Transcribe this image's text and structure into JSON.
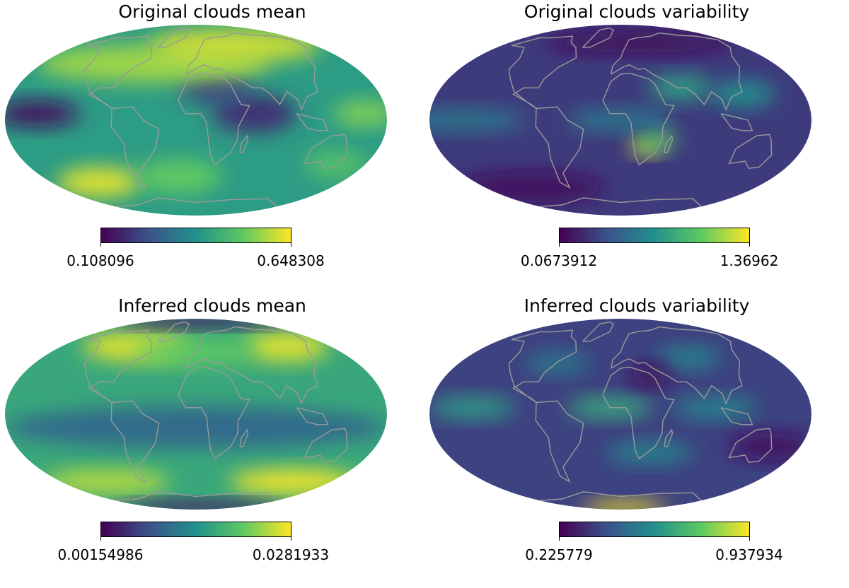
{
  "panels": [
    {
      "title": "Original clouds mean",
      "colorbar_min_label": "0.108096",
      "colorbar_max_label": "0.648308",
      "blobs": [
        {
          "lon": -150,
          "lat": 5,
          "rx": 40,
          "ry": 12,
          "level": 0.05
        },
        {
          "lon": 55,
          "lat": 5,
          "rx": 40,
          "ry": 18,
          "level": 0.15
        },
        {
          "lon": 20,
          "lat": 25,
          "rx": 35,
          "ry": 14,
          "level": 0.2
        },
        {
          "lon": -50,
          "lat": 45,
          "rx": 110,
          "ry": 18,
          "level": 0.85
        },
        {
          "lon": 60,
          "lat": 62,
          "rx": 80,
          "ry": 16,
          "level": 0.92
        },
        {
          "lon": -120,
          "lat": -50,
          "rx": 40,
          "ry": 14,
          "level": 0.95
        },
        {
          "lon": -20,
          "lat": -45,
          "rx": 40,
          "ry": 16,
          "level": 0.75
        },
        {
          "lon": 150,
          "lat": -35,
          "rx": 30,
          "ry": 14,
          "level": 0.7
        },
        {
          "lon": 160,
          "lat": 5,
          "rx": 30,
          "ry": 12,
          "level": 0.8
        }
      ],
      "base_level": 0.55
    },
    {
      "title": "Original clouds variability",
      "colorbar_min_label": "0.0673912",
      "colorbar_max_label": "1.36962",
      "blobs": [
        {
          "lon": 25,
          "lat": -20,
          "rx": 14,
          "ry": 8,
          "level": 0.95
        },
        {
          "lon": 35,
          "lat": -15,
          "rx": 18,
          "ry": 10,
          "level": 0.7
        },
        {
          "lon": 60,
          "lat": 25,
          "rx": 30,
          "ry": 12,
          "level": 0.55
        },
        {
          "lon": 120,
          "lat": 20,
          "rx": 30,
          "ry": 12,
          "level": 0.5
        },
        {
          "lon": -150,
          "lat": 0,
          "rx": 60,
          "ry": 10,
          "level": 0.4
        },
        {
          "lon": 0,
          "lat": 0,
          "rx": 50,
          "ry": 10,
          "level": 0.4
        },
        {
          "lon": 30,
          "lat": 65,
          "rx": 90,
          "ry": 10,
          "level": 0.02
        },
        {
          "lon": -120,
          "lat": -55,
          "rx": 70,
          "ry": 14,
          "level": 0.05
        }
      ],
      "base_level": 0.18
    },
    {
      "title": "Inferred clouds mean",
      "colorbar_min_label": "0.00154986",
      "colorbar_max_label": "0.0281933",
      "blobs": [
        {
          "lon": -80,
          "lat": 55,
          "rx": 50,
          "ry": 14,
          "level": 0.95
        },
        {
          "lon": 120,
          "lat": 55,
          "rx": 40,
          "ry": 14,
          "level": 0.95
        },
        {
          "lon": 0,
          "lat": 50,
          "rx": 60,
          "ry": 12,
          "level": 0.75
        },
        {
          "lon": -120,
          "lat": -55,
          "rx": 60,
          "ry": 12,
          "level": 0.88
        },
        {
          "lon": 130,
          "lat": -55,
          "rx": 60,
          "ry": 12,
          "level": 0.98
        },
        {
          "lon": 0,
          "lat": -10,
          "rx": 180,
          "ry": 20,
          "level": 0.35
        },
        {
          "lon": 20,
          "lat": 85,
          "rx": 80,
          "ry": 6,
          "level": 0.05
        },
        {
          "lon": 20,
          "lat": -85,
          "rx": 80,
          "ry": 6,
          "level": 0.05
        }
      ],
      "base_level": 0.6
    },
    {
      "title": "Inferred clouds variability",
      "colorbar_min_label": "0.225779",
      "colorbar_max_label": "0.937934",
      "blobs": [
        {
          "lon": -140,
          "lat": 5,
          "rx": 40,
          "ry": 10,
          "level": 0.55
        },
        {
          "lon": -10,
          "lat": 5,
          "rx": 40,
          "ry": 10,
          "level": 0.6
        },
        {
          "lon": 90,
          "lat": 5,
          "rx": 40,
          "ry": 10,
          "level": 0.45
        },
        {
          "lon": -70,
          "lat": 40,
          "rx": 30,
          "ry": 10,
          "level": 0.4
        },
        {
          "lon": 80,
          "lat": 45,
          "rx": 30,
          "ry": 10,
          "level": 0.45
        },
        {
          "lon": 30,
          "lat": -30,
          "rx": 40,
          "ry": 10,
          "level": 0.45
        },
        {
          "lon": 20,
          "lat": -85,
          "rx": 40,
          "ry": 6,
          "level": 1.0
        },
        {
          "lon": 30,
          "lat": 30,
          "rx": 20,
          "ry": 10,
          "level": 0.02
        },
        {
          "lon": 150,
          "lat": -25,
          "rx": 40,
          "ry": 12,
          "level": 0.05
        }
      ],
      "base_level": 0.2
    }
  ],
  "colors": {
    "coastline": "#9a9a9a",
    "viridis": [
      "#440154",
      "#3b528b",
      "#21918c",
      "#5ec962",
      "#fde725"
    ]
  }
}
